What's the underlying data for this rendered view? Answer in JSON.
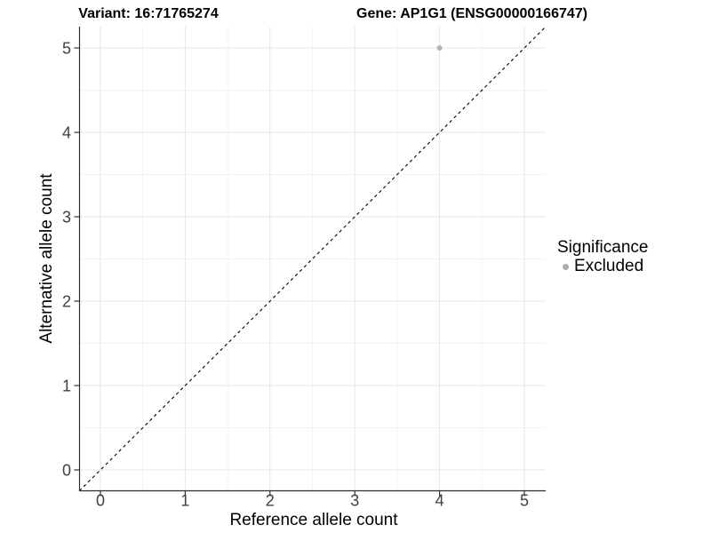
{
  "figure": {
    "title_left": "Variant: 16:71765274",
    "title_right": "Gene: AP1G1 (ENSG00000166747)"
  },
  "axes": {
    "x": {
      "label": "Reference allele count",
      "ticks": [
        0,
        1,
        2,
        3,
        4,
        5
      ]
    },
    "y": {
      "label": "Alternative allele count",
      "ticks": [
        0,
        1,
        2,
        3,
        4,
        5
      ]
    }
  },
  "legend": {
    "title": "Significance",
    "items": [
      {
        "label": "Excluded",
        "color": "#ababab",
        "marker": "circle-icon"
      }
    ]
  },
  "chart_data": {
    "type": "scatter",
    "title_left": "Variant: 16:71765274",
    "title_right": "Gene: AP1G1 (ENSG00000166747)",
    "xlabel": "Reference allele count",
    "ylabel": "Alternative allele count",
    "xlim": [
      -0.25,
      5.25
    ],
    "ylim": [
      -0.25,
      5.25
    ],
    "x_ticks": [
      0,
      1,
      2,
      3,
      4,
      5
    ],
    "y_ticks": [
      0,
      1,
      2,
      3,
      4,
      5
    ],
    "minor_ticks": [
      0.5,
      1.5,
      2.5,
      3.5,
      4.5
    ],
    "grid": "major+minor",
    "legend_position": "right",
    "series": [
      {
        "name": "Excluded",
        "color": "#b3b3b3",
        "marker_radius": 3,
        "points": [
          {
            "x": 4,
            "y": 5
          }
        ]
      }
    ],
    "reference_line": {
      "type": "identity",
      "equation": "y = x",
      "style": "dashed",
      "color": "#000000"
    }
  },
  "colors": {
    "background": "#ffffff",
    "grid_major": "#e6e6e6",
    "grid_minor": "#f2f2f2",
    "axis_line": "#2e2e2e",
    "tick_mark": "#333333",
    "tick_label": "#404040",
    "point": "#b3b3b3",
    "reference_line": "#000000"
  }
}
